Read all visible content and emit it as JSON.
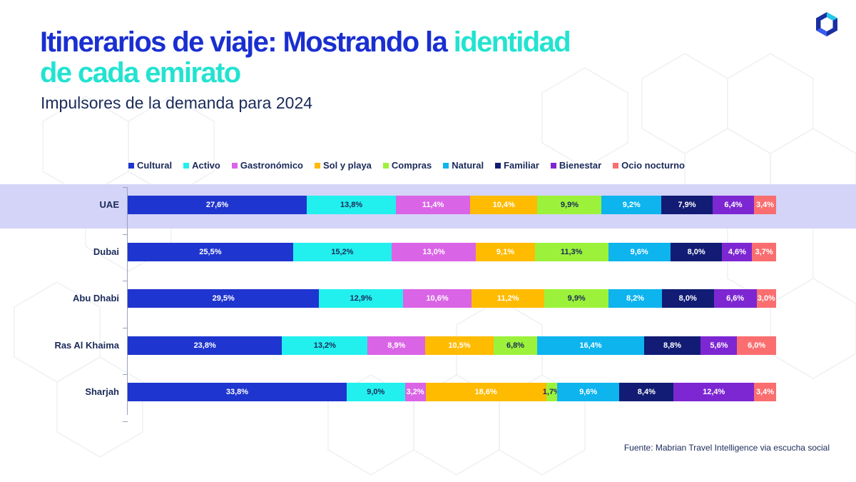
{
  "header": {
    "title_part1": "Itinerarios de viaje: Mostrando la ",
    "title_highlight": "identidad",
    "title_part2": "de cada emirato",
    "subtitle": "Impulsores de la demanda para 2024"
  },
  "footer": {
    "source": "Fuente: Mabrian Travel Intelligence via escucha social"
  },
  "colors": {
    "title": "#1a2fd0",
    "highlight": "#22e3d0",
    "band": "#d3d4f8"
  },
  "chart_data": {
    "type": "bar",
    "orientation": "horizontal",
    "stacked": true,
    "title": "Impulsores de la demanda para 2024",
    "xlabel": "",
    "ylabel": "",
    "xlim": [
      0,
      100
    ],
    "legend_position": "top",
    "highlighted_category": "UAE",
    "categories": [
      "UAE",
      "Dubai",
      "Abu Dhabi",
      "Ras Al Khaima",
      "Sharjah"
    ],
    "series": [
      {
        "name": "Cultural",
        "color": "#1f35cf",
        "label_color": "#ffffff",
        "values": [
          27.6,
          25.5,
          29.5,
          23.8,
          33.8
        ],
        "labels": [
          "27,6%",
          "25,5%",
          "29,5%",
          "23,8%",
          "33,8%"
        ]
      },
      {
        "name": "Activo",
        "color": "#22f0ee",
        "label_color": "#1b2a5a",
        "values": [
          13.8,
          15.2,
          12.9,
          13.2,
          9.0
        ],
        "labels": [
          "13,8%",
          "15,2%",
          "12,9%",
          "13,2%",
          "9,0%"
        ]
      },
      {
        "name": "Gastronómico",
        "color": "#da64e6",
        "label_color": "#ffffff",
        "values": [
          11.4,
          13.0,
          10.6,
          8.9,
          3.2
        ],
        "labels": [
          "11,4%",
          "13,0%",
          "10,6%",
          "8,9%",
          "3,2%"
        ]
      },
      {
        "name": "Sol y playa",
        "color": "#ffbb00",
        "label_color": "#ffffff",
        "values": [
          10.4,
          9.1,
          11.2,
          10.5,
          18.6
        ],
        "labels": [
          "10,4%",
          "9,1%",
          "11,2%",
          "10,5%",
          "18,6%"
        ]
      },
      {
        "name": "Compras",
        "color": "#9cf23a",
        "label_color": "#1b2a5a",
        "values": [
          9.9,
          11.3,
          9.9,
          6.8,
          1.7
        ],
        "labels": [
          "9,9%",
          "11,3%",
          "9,9%",
          "6,8%",
          "1,7%"
        ]
      },
      {
        "name": "Natural",
        "color": "#0db4ee",
        "label_color": "#ffffff",
        "values": [
          9.2,
          9.6,
          8.2,
          16.4,
          9.6
        ],
        "labels": [
          "9,2%",
          "9,6%",
          "8,2%",
          "16,4%",
          "9,6%"
        ]
      },
      {
        "name": "Familiar",
        "color": "#121c74",
        "label_color": "#ffffff",
        "values": [
          7.9,
          8.0,
          8.0,
          8.8,
          8.4
        ],
        "labels": [
          "7,9%",
          "8,0%",
          "8,0%",
          "8,8%",
          "8,4%"
        ]
      },
      {
        "name": "Bienestar",
        "color": "#7d27d2",
        "label_color": "#ffffff",
        "values": [
          6.4,
          4.6,
          6.6,
          5.6,
          12.4
        ],
        "labels": [
          "6,4%",
          "4,6%",
          "6,6%",
          "5,6%",
          "12,4%"
        ]
      },
      {
        "name": "Ocio nocturno",
        "color": "#fa6e70",
        "label_color": "#ffffff",
        "values": [
          3.4,
          3.7,
          3.0,
          6.0,
          3.4
        ],
        "labels": [
          "3,4%",
          "3,7%",
          "3,0%",
          "6,0%",
          "3,4%"
        ]
      }
    ]
  }
}
